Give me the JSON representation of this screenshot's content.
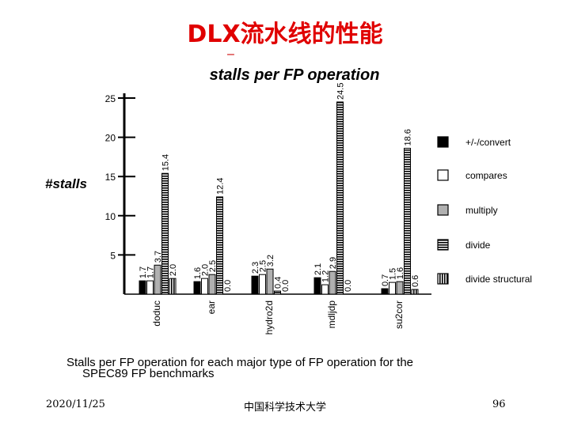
{
  "slide": {
    "title": "DLX流水线的性能",
    "dash": "–",
    "caption_line1": "Stalls per FP operation for each major type of FP operation for the",
    "caption_line2": "SPEC89 FP benchmarks",
    "date": "2020/11/25",
    "organization": "中国科学技术大学",
    "page_number": "96"
  },
  "chart_data": {
    "type": "bar",
    "title": "stalls per FP operation",
    "ylabel": "#stalls",
    "ylim": [
      0,
      25
    ],
    "yticks": [
      5,
      10,
      15,
      20,
      25
    ],
    "categories": [
      "doduc",
      "ear",
      "hydro2d",
      "mdljdp",
      "su2cor"
    ],
    "series": [
      {
        "name": "+/-/convert",
        "values": [
          1.7,
          1.6,
          2.3,
          2.1,
          0.7
        ]
      },
      {
        "name": "compares",
        "values": [
          1.7,
          2.0,
          2.5,
          1.2,
          1.5
        ]
      },
      {
        "name": "multiply",
        "values": [
          3.7,
          2.5,
          3.2,
          2.9,
          1.6
        ]
      },
      {
        "name": "divide",
        "values": [
          15.4,
          12.4,
          0.4,
          24.5,
          18.6
        ]
      },
      {
        "name": "divide structural",
        "values": [
          2.0,
          0.0,
          0.0,
          0.0,
          0.6
        ]
      }
    ],
    "data_labels": [
      [
        "1.7",
        "1.7",
        "3.7",
        "15.4",
        "2.0"
      ],
      [
        "1.6",
        "2.0",
        "2.5",
        "12.4",
        "0.0"
      ],
      [
        "2.3",
        "2.5",
        "3.2",
        "0.4",
        "0.0"
      ],
      [
        "2.1",
        "1.2",
        "2.9",
        "24.5",
        "0.0"
      ],
      [
        "0.7",
        "1.5",
        "1.6",
        "18.6",
        "0.6"
      ]
    ],
    "legend_position": "right",
    "grid": false
  }
}
